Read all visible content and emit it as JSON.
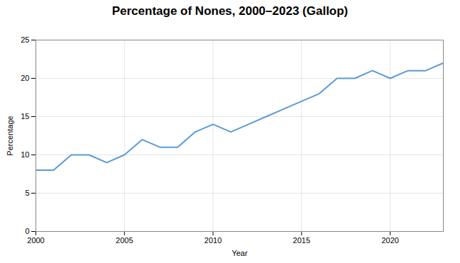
{
  "chart_data": {
    "type": "line",
    "title": "Percentage of Nones, 2000–2023 (Gallop)",
    "xlabel": "Year",
    "ylabel": "Percentage",
    "x": [
      2000,
      2001,
      2002,
      2003,
      2004,
      2005,
      2006,
      2007,
      2008,
      2009,
      2010,
      2011,
      2012,
      2013,
      2014,
      2015,
      2016,
      2017,
      2018,
      2019,
      2020,
      2021,
      2022,
      2023
    ],
    "values": [
      8,
      8,
      10,
      10,
      9,
      10,
      12,
      11,
      11,
      13,
      14,
      13,
      14,
      15,
      16,
      17,
      18,
      20,
      20,
      21,
      20,
      21,
      21,
      22
    ],
    "color": "#5b9bd5",
    "xlim": [
      2000,
      2023
    ],
    "xticks": [
      2000,
      2005,
      2010,
      2015,
      2020
    ],
    "ylim": [
      0,
      25
    ],
    "yticks": [
      0,
      5,
      10,
      15,
      20,
      25
    ],
    "grid": true
  }
}
